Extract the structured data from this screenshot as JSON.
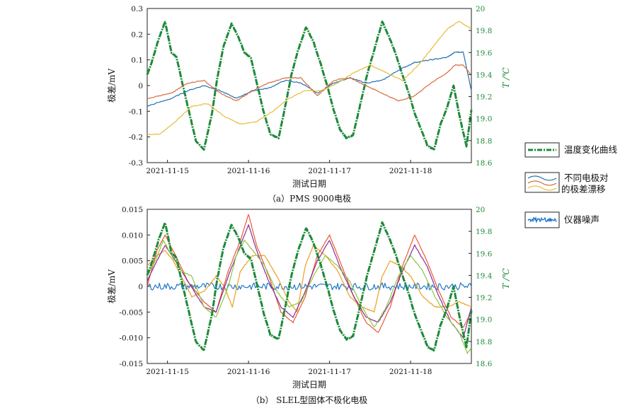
{
  "chart_data": [
    {
      "type": "line",
      "caption": "（a）PMS 9000电极",
      "xlabel": "测试日期",
      "ylabel": "极差/mV",
      "y2label": "T /℃",
      "xlim": [
        0,
        4
      ],
      "ylim": [
        -0.3,
        0.3
      ],
      "y2lim": [
        18.6,
        20.0
      ],
      "x_ticks": [
        {
          "x": 0.25,
          "label": "2021-11-15"
        },
        {
          "x": 1.25,
          "label": "2021-11-16"
        },
        {
          "x": 2.25,
          "label": "2021-11-17"
        },
        {
          "x": 3.25,
          "label": "2021-11-18"
        }
      ],
      "y_ticks": [
        "0.3",
        "0.2",
        "0.1",
        "0",
        "-0.1",
        "-0.2",
        "-0.3"
      ],
      "y2_ticks": [
        "20",
        "19.8",
        "19.6",
        "19.4",
        "19.2",
        "19.0",
        "18.8",
        "18.6"
      ],
      "grid": false,
      "series": [
        {
          "axis": "y2",
          "color": "#1e8a3a",
          "width": 3,
          "x": [
            0,
            0.05,
            0.14,
            0.22,
            0.3,
            0.36,
            0.44,
            0.52,
            0.6,
            0.7,
            0.8,
            0.86,
            0.94,
            1.04,
            1.12,
            1.2,
            1.28,
            1.36,
            1.44,
            1.52,
            1.62,
            1.7,
            1.78,
            1.86,
            1.96,
            2.05,
            2.14,
            2.22,
            2.3,
            2.38,
            2.46,
            2.54,
            2.62,
            2.72,
            2.8,
            2.9,
            2.98,
            3.06,
            3.14,
            3.22,
            3.3,
            3.38,
            3.46,
            3.54,
            3.62,
            3.7,
            3.78,
            3.86,
            3.94,
            4.0
          ],
          "y": [
            19.4,
            19.5,
            19.72,
            19.88,
            19.6,
            19.56,
            19.3,
            19.05,
            18.8,
            18.72,
            19.05,
            19.35,
            19.65,
            19.86,
            19.75,
            19.6,
            19.55,
            19.3,
            19.05,
            18.86,
            18.82,
            19.1,
            19.4,
            19.62,
            19.83,
            19.7,
            19.5,
            19.3,
            19.08,
            18.9,
            18.82,
            18.85,
            19.1,
            19.42,
            19.62,
            19.88,
            19.75,
            19.6,
            19.42,
            19.25,
            19.05,
            18.9,
            18.75,
            18.72,
            18.95,
            19.1,
            19.3,
            19.0,
            18.75,
            19.08
          ]
        },
        {
          "axis": "y",
          "color": "#1f6fb4",
          "width": 1.2,
          "x": [
            0,
            0.3,
            0.5,
            0.7,
            0.9,
            1.1,
            1.3,
            1.5,
            1.7,
            1.9,
            2.1,
            2.3,
            2.5,
            2.7,
            2.9,
            3.1,
            3.3,
            3.5,
            3.7,
            3.8,
            3.9,
            4.0
          ],
          "y": [
            -0.08,
            -0.05,
            -0.02,
            0.0,
            -0.02,
            -0.05,
            -0.02,
            -0.01,
            0.02,
            0.01,
            -0.03,
            0.01,
            0.03,
            0.01,
            0.02,
            0.06,
            0.09,
            0.1,
            0.11,
            0.13,
            0.13,
            -0.02
          ]
        },
        {
          "axis": "y",
          "color": "#d86a3a",
          "width": 1.2,
          "x": [
            0,
            0.3,
            0.5,
            0.7,
            0.9,
            1.1,
            1.3,
            1.5,
            1.7,
            1.9,
            2.1,
            2.3,
            2.5,
            2.7,
            2.9,
            3.1,
            3.3,
            3.5,
            3.7,
            3.8,
            3.9,
            4.0
          ],
          "y": [
            -0.05,
            -0.03,
            0.01,
            0.02,
            -0.03,
            -0.06,
            -0.02,
            0.01,
            0.03,
            0.03,
            -0.04,
            0.02,
            0.03,
            0.0,
            -0.03,
            -0.06,
            -0.04,
            0.01,
            0.05,
            0.08,
            0.08,
            0.04
          ]
        },
        {
          "axis": "y",
          "color": "#e6bc3a",
          "width": 1.2,
          "x": [
            0,
            0.15,
            0.35,
            0.55,
            0.75,
            0.95,
            1.15,
            1.35,
            1.55,
            1.75,
            1.95,
            2.15,
            2.35,
            2.55,
            2.75,
            2.95,
            3.15,
            3.35,
            3.55,
            3.7,
            3.85,
            4.0
          ],
          "y": [
            -0.19,
            -0.19,
            -0.14,
            -0.08,
            -0.07,
            -0.12,
            -0.15,
            -0.14,
            -0.1,
            -0.05,
            -0.02,
            -0.02,
            0.01,
            0.05,
            0.08,
            0.05,
            0.02,
            0.08,
            0.16,
            0.22,
            0.25,
            0.22
          ]
        }
      ]
    },
    {
      "type": "line",
      "caption": "（b） SLEL型固体不极化电极",
      "xlabel": "测试日期",
      "ylabel": "极差/mV",
      "y2label": "T /℃",
      "xlim": [
        0,
        4
      ],
      "ylim": [
        -0.015,
        0.015
      ],
      "y2lim": [
        18.6,
        20.0
      ],
      "x_ticks": [
        {
          "x": 0.25,
          "label": "2021-11-15"
        },
        {
          "x": 1.25,
          "label": "2021-11-16"
        },
        {
          "x": 2.25,
          "label": "2021-11-17"
        },
        {
          "x": 3.25,
          "label": "2021-11-18"
        }
      ],
      "y_ticks": [
        "0.015",
        "0.010",
        "0.005",
        "0",
        "-0.005",
        "-0.010",
        "-0.015"
      ],
      "y2_ticks": [
        "20",
        "19.8",
        "19.6",
        "19.4",
        "19.2",
        "19.0",
        "18.8",
        "18.6"
      ],
      "grid": false,
      "series": [
        {
          "axis": "y",
          "color": "#1f78c8",
          "width": 1.2,
          "noise": 0.0007,
          "x": [
            0,
            4.0
          ],
          "y": [
            0.0,
            0.0
          ]
        },
        {
          "axis": "y",
          "color": "#e8a020",
          "width": 1.2,
          "x": [
            0,
            0.12,
            0.22,
            0.32,
            0.42,
            0.55,
            0.7,
            0.85,
            0.95,
            1.05,
            1.15,
            1.3,
            1.45,
            1.6,
            1.75,
            1.85,
            1.95,
            2.05,
            2.2,
            2.35,
            2.5,
            2.65,
            2.8,
            2.9,
            3.0,
            3.12,
            3.25,
            3.4,
            3.55,
            3.7,
            3.85,
            4.0
          ],
          "y": [
            0.004,
            0.006,
            0.007,
            0.005,
            0.002,
            -0.002,
            -0.001,
            0.002,
            0.0,
            -0.004,
            0.003,
            0.006,
            0.006,
            0.002,
            -0.003,
            -0.005,
            0.004,
            0.008,
            0.006,
            0.003,
            -0.002,
            -0.004,
            -0.005,
            0.002,
            0.005,
            0.004,
            0.002,
            -0.002,
            -0.004,
            -0.004,
            -0.003,
            -0.004
          ]
        },
        {
          "axis": "y",
          "color": "#e85a30",
          "width": 1.2,
          "x": [
            0,
            0.12,
            0.22,
            0.35,
            0.5,
            0.7,
            0.85,
            1.0,
            1.15,
            1.25,
            1.35,
            1.5,
            1.65,
            1.8,
            1.95,
            2.1,
            2.25,
            2.4,
            2.55,
            2.7,
            2.85,
            3.0,
            3.15,
            3.3,
            3.45,
            3.6,
            3.75,
            3.9,
            4.0
          ],
          "y": [
            0.0,
            0.007,
            0.01,
            0.006,
            0.001,
            -0.003,
            -0.005,
            0.003,
            0.009,
            0.014,
            0.008,
            0.002,
            -0.005,
            -0.007,
            -0.002,
            0.006,
            0.01,
            0.004,
            -0.002,
            -0.007,
            -0.009,
            -0.004,
            0.004,
            0.01,
            0.005,
            -0.001,
            -0.006,
            -0.008,
            -0.005
          ]
        },
        {
          "axis": "y",
          "color": "#8a2a9a",
          "width": 1.2,
          "x": [
            0,
            0.12,
            0.22,
            0.35,
            0.5,
            0.7,
            0.85,
            1.0,
            1.15,
            1.25,
            1.35,
            1.5,
            1.65,
            1.8,
            1.95,
            2.1,
            2.25,
            2.4,
            2.55,
            2.7,
            2.85,
            3.0,
            3.15,
            3.3,
            3.45,
            3.6,
            3.75,
            3.9,
            4.0
          ],
          "y": [
            0.001,
            0.005,
            0.008,
            0.005,
            0.001,
            -0.004,
            -0.005,
            0.002,
            0.008,
            0.012,
            0.007,
            0.001,
            -0.004,
            -0.006,
            -0.001,
            0.005,
            0.009,
            0.003,
            -0.002,
            -0.006,
            -0.007,
            -0.003,
            0.003,
            0.008,
            0.004,
            -0.002,
            -0.007,
            -0.01,
            -0.004
          ]
        },
        {
          "axis": "y",
          "color": "#8cc63f",
          "width": 1.2,
          "x": [
            0,
            0.1,
            0.2,
            0.3,
            0.42,
            0.55,
            0.7,
            0.85,
            1.0,
            1.1,
            1.2,
            1.3,
            1.45,
            1.6,
            1.75,
            1.9,
            2.05,
            2.2,
            2.35,
            2.5,
            2.65,
            2.8,
            2.95,
            3.1,
            3.25,
            3.4,
            3.55,
            3.7,
            3.85,
            3.95,
            4.0
          ],
          "y": [
            0.002,
            0.005,
            0.009,
            0.006,
            0.003,
            0.002,
            -0.004,
            -0.006,
            0.0,
            0.006,
            0.009,
            0.007,
            0.004,
            -0.001,
            -0.004,
            -0.003,
            0.002,
            0.006,
            0.004,
            0.001,
            -0.004,
            -0.008,
            -0.004,
            0.002,
            0.006,
            0.003,
            -0.002,
            -0.006,
            -0.009,
            -0.013,
            -0.012
          ]
        },
        {
          "axis": "y2",
          "color": "#1e8a3a",
          "width": 3,
          "x": [
            0,
            0.05,
            0.14,
            0.22,
            0.3,
            0.36,
            0.44,
            0.52,
            0.6,
            0.7,
            0.8,
            0.86,
            0.94,
            1.04,
            1.12,
            1.2,
            1.28,
            1.36,
            1.44,
            1.52,
            1.62,
            1.7,
            1.78,
            1.86,
            1.96,
            2.05,
            2.14,
            2.22,
            2.3,
            2.38,
            2.46,
            2.54,
            2.62,
            2.72,
            2.8,
            2.9,
            2.98,
            3.06,
            3.14,
            3.22,
            3.3,
            3.38,
            3.46,
            3.54,
            3.62,
            3.7,
            3.78,
            3.86,
            3.94,
            4.0
          ],
          "y": [
            19.4,
            19.5,
            19.72,
            19.88,
            19.6,
            19.56,
            19.3,
            19.05,
            18.8,
            18.72,
            19.05,
            19.35,
            19.65,
            19.86,
            19.75,
            19.6,
            19.55,
            19.3,
            19.05,
            18.86,
            18.82,
            19.1,
            19.4,
            19.62,
            19.83,
            19.7,
            19.5,
            19.3,
            19.08,
            18.9,
            18.82,
            18.85,
            19.1,
            19.42,
            19.62,
            19.88,
            19.75,
            19.6,
            19.42,
            19.25,
            19.05,
            18.9,
            18.75,
            18.72,
            18.95,
            19.1,
            19.3,
            19.0,
            18.75,
            19.08
          ]
        }
      ]
    }
  ],
  "legend": {
    "temperature": "温度变化曲线",
    "drift_line1": "不同电极对",
    "drift_line2": "的极差漂移",
    "noise": "仪器噪声",
    "colors": {
      "temperature": "#1e8a3a",
      "drift": [
        "#1f6fb4",
        "#d86a3a",
        "#e6bc3a"
      ],
      "noise": "#1f78c8"
    }
  }
}
